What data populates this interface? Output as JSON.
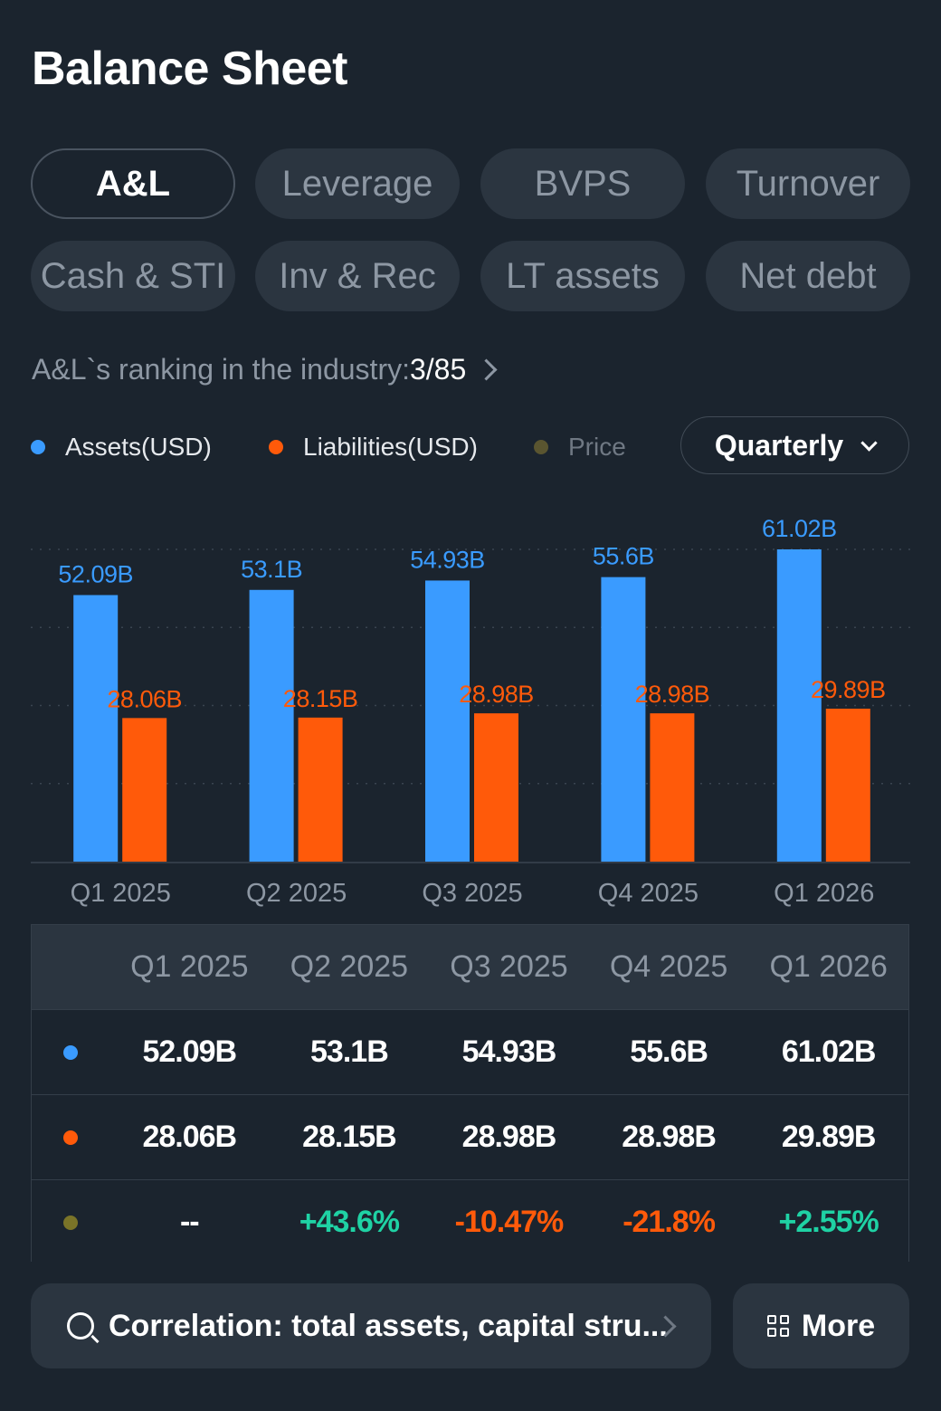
{
  "header": {
    "title": "Balance Sheet"
  },
  "tabs": [
    {
      "label": "A&L",
      "active": true
    },
    {
      "label": "Leverage",
      "active": false
    },
    {
      "label": "BVPS",
      "active": false
    },
    {
      "label": "Turnover",
      "active": false
    },
    {
      "label": "Cash & STI",
      "active": false
    },
    {
      "label": "Inv & Rec",
      "active": false
    },
    {
      "label": "LT assets",
      "active": false
    },
    {
      "label": "Net debt",
      "active": false
    }
  ],
  "ranking": {
    "label": "A&L`s ranking in the industry:",
    "value": "3/85"
  },
  "legend": [
    {
      "label": "Assets(USD)",
      "color": "#3a9bff"
    },
    {
      "label": "Liabilities(USD)",
      "color": "#ff5a0a"
    },
    {
      "label": "Price",
      "color": "#5a5530"
    }
  ],
  "period_select": {
    "value": "Quarterly"
  },
  "chart_data": {
    "type": "bar",
    "categories": [
      "Q1 2025",
      "Q2 2025",
      "Q3 2025",
      "Q4 2025",
      "Q1 2026"
    ],
    "series": [
      {
        "name": "Assets(USD)",
        "color": "#3a9bff",
        "values": [
          52.09,
          53.1,
          54.93,
          55.6,
          61.02
        ],
        "labels": [
          "52.09B",
          "53.1B",
          "54.93B",
          "55.6B",
          "61.02B"
        ]
      },
      {
        "name": "Liabilities(USD)",
        "color": "#ff5a0a",
        "values": [
          28.06,
          28.15,
          28.98,
          28.98,
          29.89
        ],
        "labels": [
          "28.06B",
          "28.15B",
          "28.98B",
          "28.98B",
          "29.89B"
        ]
      }
    ],
    "ylim": [
      0,
      61.02
    ],
    "grid": true
  },
  "table": {
    "headers": [
      "Q1 2025",
      "Q2 2025",
      "Q3 2025",
      "Q4 2025",
      "Q1 2026"
    ],
    "rows": [
      {
        "dot_color": "#3a9bff",
        "cells": [
          "52.09B",
          "53.1B",
          "54.93B",
          "55.6B",
          "61.02B"
        ]
      },
      {
        "dot_color": "#ff5a0a",
        "cells": [
          "28.06B",
          "28.15B",
          "28.98B",
          "28.98B",
          "29.89B"
        ]
      },
      {
        "dot_color": "#7a7428",
        "cells": [
          "--",
          "+43.6%",
          "-10.47%",
          "-21.8%",
          "+2.55%"
        ]
      }
    ]
  },
  "footer": {
    "search_text": "Correlation: total assets, capital stru...",
    "more_label": "More"
  }
}
